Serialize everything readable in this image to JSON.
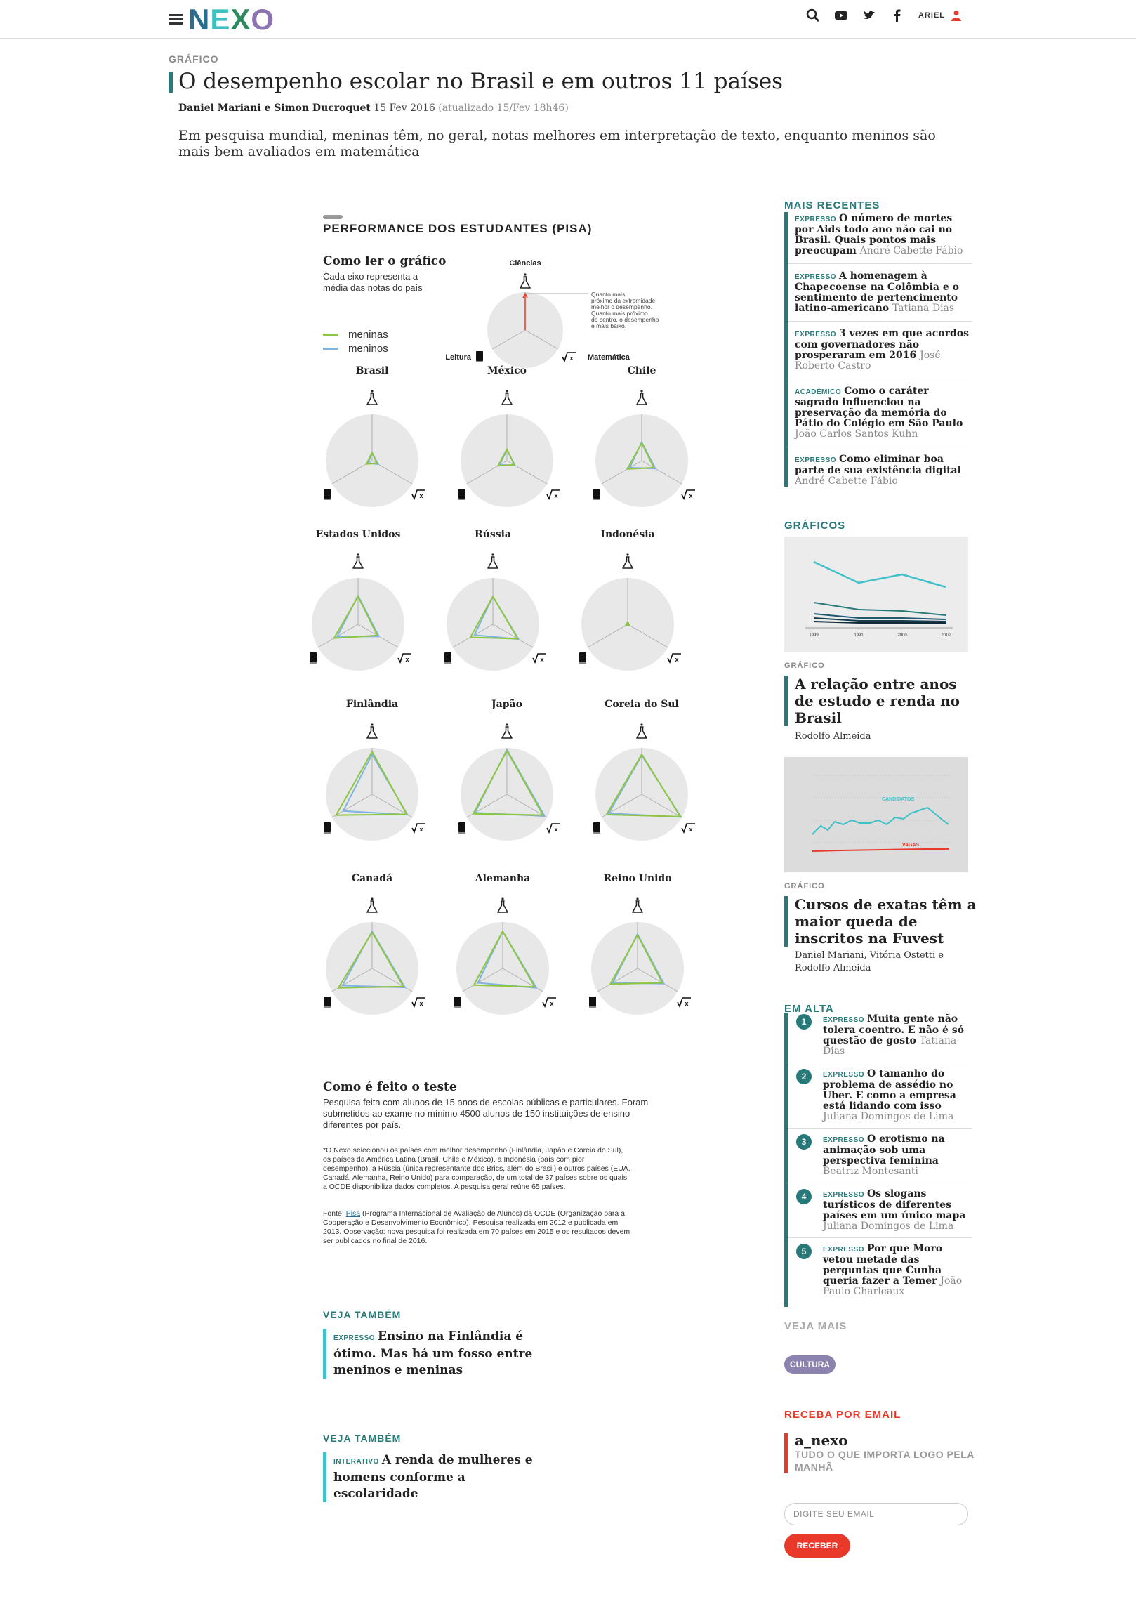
{
  "header": {
    "logo": "NEXO",
    "user": "ARIEL"
  },
  "article": {
    "kicker": "GRÁFICO",
    "title": "O desempenho escolar no Brasil e em outros 11 países",
    "authors": "Daniel Mariani e Simon Ducroquet",
    "date": "15 Fev 2016",
    "updated": "(atualizado 15/Fev 18h46)",
    "lead": "Em pesquisa mundial, meninas têm, no geral, notas melhores em interpretação de texto, enquanto meninos são mais bem avaliados em matemática"
  },
  "chart_data": {
    "type": "radar",
    "title": "PERFORMANCE DOS ESTUDANTES (PISA)",
    "how_to_read": {
      "title": "Como ler o gráfico",
      "description": "Cada eixo representa a média das notas do país",
      "note": [
        "Quanto mais",
        "próximo da extremidade,",
        "melhor o desempenho.",
        "Quanto mais próximo",
        "do centro, o desempenho",
        "é mais baixo."
      ]
    },
    "axes": [
      "Ciências",
      "Matemática",
      "Leitura"
    ],
    "legend": [
      {
        "name": "meninas",
        "color": "#8dc63f"
      },
      {
        "name": "meninos",
        "color": "#7fb3e0"
      }
    ],
    "countries": [
      {
        "name": "Brasil",
        "meninas": [
          0.18,
          0.12,
          0.14
        ],
        "meninos": [
          0.17,
          0.15,
          0.1
        ]
      },
      {
        "name": "México",
        "meninas": [
          0.25,
          0.18,
          0.22
        ],
        "meninos": [
          0.24,
          0.2,
          0.18
        ]
      },
      {
        "name": "Chile",
        "meninas": [
          0.38,
          0.3,
          0.36
        ],
        "meninos": [
          0.4,
          0.34,
          0.3
        ]
      },
      {
        "name": "Estados Unidos",
        "meninas": [
          0.6,
          0.48,
          0.6
        ],
        "meninos": [
          0.62,
          0.52,
          0.52
        ]
      },
      {
        "name": "Rússia",
        "meninas": [
          0.6,
          0.62,
          0.56
        ],
        "meninos": [
          0.6,
          0.64,
          0.46
        ]
      },
      {
        "name": "Indonésia",
        "meninas": [
          0.05,
          0.04,
          0.05
        ],
        "meninos": [
          0.05,
          0.05,
          0.04
        ]
      },
      {
        "name": "Finlândia",
        "meninas": [
          0.92,
          0.86,
          0.9
        ],
        "meninos": [
          0.86,
          0.88,
          0.72
        ]
      },
      {
        "name": "Japão",
        "meninas": [
          0.94,
          0.9,
          0.84
        ],
        "meninos": [
          0.96,
          0.94,
          0.8
        ]
      },
      {
        "name": "Coreia do Sul",
        "meninas": [
          0.86,
          0.96,
          0.88
        ],
        "meninos": [
          0.84,
          0.98,
          0.82
        ]
      },
      {
        "name": "Canadá",
        "meninas": [
          0.78,
          0.78,
          0.84
        ],
        "meninos": [
          0.8,
          0.82,
          0.74
        ]
      },
      {
        "name": "Alemanha",
        "meninas": [
          0.8,
          0.8,
          0.72
        ],
        "meninos": [
          0.8,
          0.84,
          0.62
        ]
      },
      {
        "name": "Reino Unido",
        "meninas": [
          0.72,
          0.62,
          0.68
        ],
        "meninos": [
          0.74,
          0.66,
          0.62
        ]
      }
    ],
    "method_title": "Como é feito o teste",
    "method_text": "Pesquisa feita com alunos de 15 anos de escolas públicas e particulares. Foram submetidos ao exame no mínimo 4500 alunos de 150 instituições de ensino diferentes por país.",
    "note": "*O Nexo selecionou os países com melhor desempenho (Finlândia, Japão e Coreia do Sul), os países da América Latina (Brasil, Chile e México), a Indonésia (país com pior desempenho), a Rússia (única representante dos Brics, além do Brasil) e outros países (EUA, Canadá, Alemanha, Reino Unido) para comparação, de um total de 37 países sobre os quais a OCDE disponibiliza dados completos. A pesquisa geral reúne 65 países.",
    "source_prefix": "Fonte: ",
    "source_link": "Pisa",
    "source_text": " (Programa Internacional de Avaliação de Alunos) da OCDE (Organização para a Cooperação e Desenvolvimento Econômico). Pesquisa realizada em 2012 e publicada em 2013. Observação: nova pesquisa foi realizada em 70 países em 2015 e os resultados devem ser publicados no final de 2016."
  },
  "see_also": [
    {
      "label": "VEJA TAMBÉM",
      "tag": "EXPRESSO",
      "title": "Ensino na Finlândia é ótimo. Mas há um fosso entre meninos e meninas"
    },
    {
      "label": "VEJA TAMBÉM",
      "tag": "INTERATIVO",
      "title": "A renda de mulheres e homens conforme a escolaridade"
    }
  ],
  "sidebar": {
    "recent_head": "MAIS RECENTES",
    "recent": [
      {
        "tag": "EXPRESSO",
        "title": "O número de mortes por Aids todo ano não cai no Brasil. Quais pontos mais preocupam",
        "author": "André Cabette Fábio"
      },
      {
        "tag": "EXPRESSO",
        "title": "A homenagem à Chapecoense na Colômbia e o sentimento de pertencimento latino-americano",
        "author": "Tatiana Dias"
      },
      {
        "tag": "EXPRESSO",
        "title": "3 vezes em que acordos com governadores não prosperaram em 2016",
        "author": "José Roberto Castro"
      },
      {
        "tag": "ACADÊMICO",
        "title": "Como o caráter sagrado influenciou na preservação da memória do Pátio do Colégio em São Paulo",
        "author": "João Carlos Santos Kuhn"
      },
      {
        "tag": "EXPRESSO",
        "title": "Como eliminar boa parte de sua existência digital",
        "author": "André Cabette Fábio"
      }
    ],
    "graficos_head": "GRÁFICOS",
    "graficos": [
      {
        "kicker": "GRÁFICO",
        "title": "A relação entre anos de estudo e renda no Brasil",
        "author": "Rodolfo Almeida",
        "ticks": [
          "1999",
          "1991",
          "2000",
          "2010"
        ]
      },
      {
        "kicker": "GRÁFICO",
        "title": "Cursos de exatas têm a maior queda de inscritos na Fuvest",
        "author": "Daniel Mariani, Vitória Ostetti e Rodolfo Almeida",
        "labels": [
          "CANDIDATOS",
          "VAGAS"
        ]
      }
    ],
    "alta_head": "EM ALTA",
    "alta": [
      {
        "num": "1",
        "tag": "EXPRESSO",
        "title": "Muita gente não tolera coentro. E não é só questão de gosto",
        "author": "Tatiana Dias"
      },
      {
        "num": "2",
        "tag": "EXPRESSO",
        "title": "O tamanho do problema de assédio no Uber. E como a empresa está lidando com isso",
        "author": "Juliana Domingos de Lima"
      },
      {
        "num": "3",
        "tag": "EXPRESSO",
        "title": "O erotismo na animação sob uma perspectiva feminina",
        "author": "Beatriz Montesanti"
      },
      {
        "num": "4",
        "tag": "EXPRESSO",
        "title": "Os slogans turísticos de diferentes países em um único mapa",
        "author": "Juliana Domingos de Lima"
      },
      {
        "num": "5",
        "tag": "EXPRESSO",
        "title": "Por que Moro vetou metade das perguntas que Cunha queria fazer a Temer",
        "author": "João Paulo Charleaux"
      }
    ],
    "veja_mais": "VEJA MAIS",
    "badge": "CULTURA",
    "email_head": "RECEBA POR EMAIL",
    "email_name": "a_nexo",
    "email_desc": "TUDO O QUE IMPORTA LOGO PELA MANHÃ",
    "email_placeholder": "DIGITE SEU EMAIL",
    "email_button": "RECEBER"
  },
  "colors": {
    "accent": "#287a7a",
    "teal": "#3fc1c9",
    "red": "#e8392b",
    "girls": "#8dc63f",
    "boys": "#7fb3e0"
  },
  "icons": [
    "menu-icon",
    "search-icon",
    "youtube-icon",
    "twitter-icon",
    "facebook-icon",
    "user-icon",
    "flask-icon",
    "book-icon",
    "sqrt-icon"
  ]
}
